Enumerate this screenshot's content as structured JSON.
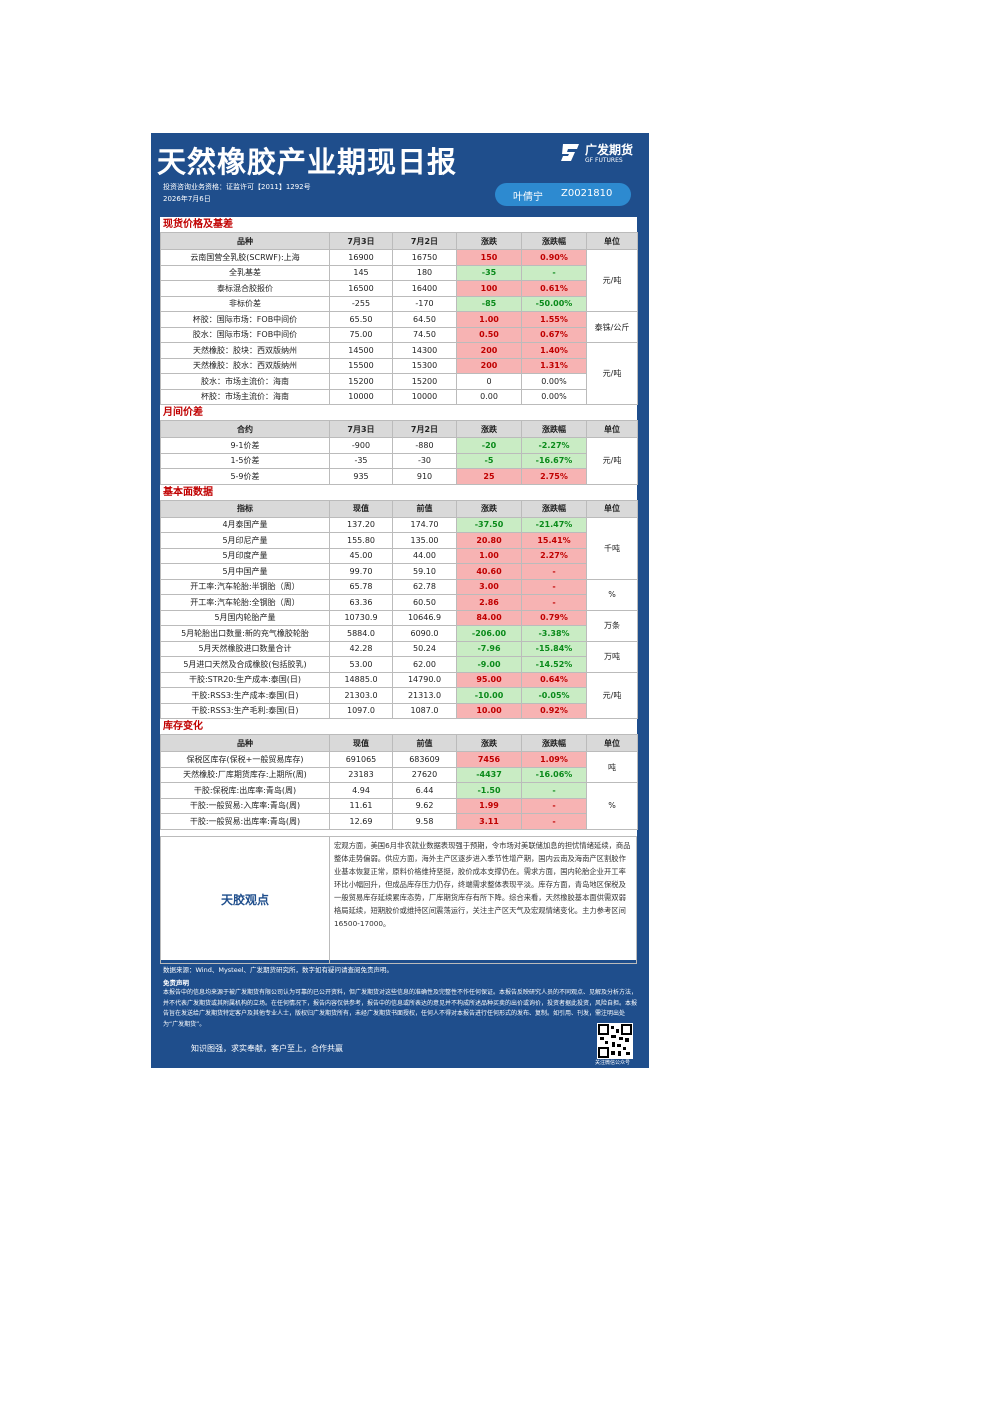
{
  "header": {
    "title": "天然橡胶产业期现日报",
    "logo_cn": "广发期货",
    "logo_en": "GF FUTURES",
    "license": "投资咨询业务资格：证监许可【2011】1292号",
    "date": "2026年7月6日",
    "analyst": "叶倩宁",
    "analyst_id": "Z0021810"
  },
  "sections": [
    {
      "title": "现货价格及基差",
      "header": [
        "品种",
        "7月3日",
        "7月2日",
        "涨跌",
        "涨跌幅",
        "单位"
      ],
      "rows": [
        [
          "云南国营全乳胶(SCRWF):上海",
          "16900",
          "16750",
          "150",
          "0.90%"
        ],
        [
          "全乳基差",
          "145",
          "180",
          "-35",
          "-"
        ],
        [
          "泰标混合胶报价",
          "16500",
          "16400",
          "100",
          "0.61%"
        ],
        [
          "非标价差",
          "-255",
          "-170",
          "-85",
          "-50.00%"
        ],
        [
          "杯胶：国际市场：FOB中间价",
          "65.50",
          "64.50",
          "1.00",
          "1.55%"
        ],
        [
          "胶水：国际市场：FOB中间价",
          "75.00",
          "74.50",
          "0.50",
          "0.67%"
        ],
        [
          "天然橡胶：胶块：西双版纳州",
          "14500",
          "14300",
          "200",
          "1.40%"
        ],
        [
          "天然橡胶：胶水：西双版纳州",
          "15500",
          "15300",
          "200",
          "1.31%"
        ],
        [
          "胶水：市场主流价：海南",
          "15200",
          "15200",
          "0",
          "0.00%"
        ],
        [
          "杯胶：市场主流价：海南",
          "10000",
          "10000",
          "0.00",
          "0.00%"
        ]
      ],
      "units": [
        "元/吨",
        null,
        null,
        null,
        "泰铢/公斤",
        null,
        "元/吨",
        null,
        null,
        null
      ]
    },
    {
      "title": "月间价差",
      "header": [
        "合约",
        "7月3日",
        "7月2日",
        "涨跌",
        "涨跌幅",
        "单位"
      ],
      "rows": [
        [
          "9-1价差",
          "-900",
          "-880",
          "-20",
          "-2.27%"
        ],
        [
          "1-5价差",
          "-35",
          "-30",
          "-5",
          "-16.67%"
        ],
        [
          "5-9价差",
          "935",
          "910",
          "25",
          "2.75%"
        ]
      ],
      "units": [
        "元/吨",
        null,
        null
      ]
    },
    {
      "title": "基本面数据",
      "header": [
        "指标",
        "现值",
        "前值",
        "涨跌",
        "涨跌幅",
        "单位"
      ],
      "rows": [
        [
          "4月泰国产量",
          "137.20",
          "174.70",
          "-37.50",
          "-21.47%"
        ],
        [
          "5月印尼产量",
          "155.80",
          "135.00",
          "20.80",
          "15.41%"
        ],
        [
          "5月印度产量",
          "45.00",
          "44.00",
          "1.00",
          "2.27%"
        ],
        [
          "5月中国产量",
          "99.70",
          "59.10",
          "40.60",
          "-"
        ],
        [
          "开工率:汽车轮胎:半钢胎（周）",
          "65.78",
          "62.78",
          "3.00",
          "-"
        ],
        [
          "开工率:汽车轮胎:全钢胎（周）",
          "63.36",
          "60.50",
          "2.86",
          "-"
        ],
        [
          "5月国内轮胎产量",
          "10730.9",
          "10646.9",
          "84.00",
          "0.79%"
        ],
        [
          "5月轮胎出口数量:新的充气橡胶轮胎",
          "5884.0",
          "6090.0",
          "-206.00",
          "-3.38%"
        ],
        [
          "5月天然橡胶进口数量合计",
          "42.28",
          "50.24",
          "-7.96",
          "-15.84%"
        ],
        [
          "5月进口天然及合成橡胶(包括胶乳)",
          "53.00",
          "62.00",
          "-9.00",
          "-14.52%"
        ],
        [
          "干胶:STR20:生产成本:泰国(日)",
          "14885.0",
          "14790.0",
          "95.00",
          "0.64%"
        ],
        [
          "干胶:RSS3:生产成本:泰国(日)",
          "21303.0",
          "21313.0",
          "-10.00",
          "-0.05%"
        ],
        [
          "干胶:RSS3:生产毛利:泰国(日)",
          "1097.0",
          "1087.0",
          "10.00",
          "0.92%"
        ]
      ],
      "units": [
        "千吨",
        null,
        null,
        null,
        "%",
        null,
        "万条",
        null,
        "万吨",
        null,
        "元/吨",
        null,
        null
      ]
    },
    {
      "title": "库存变化",
      "header": [
        "品种",
        "现值",
        "前值",
        "涨跌",
        "涨跌幅",
        "单位"
      ],
      "rows": [
        [
          "保税区库存(保税+一般贸易库存)",
          "691065",
          "683609",
          "7456",
          "1.09%"
        ],
        [
          "天然橡胶:厂库期货库存:上期所(周)",
          "23183",
          "27620",
          "-4437",
          "-16.06%"
        ],
        [
          "干胶:保税库:出库率:青岛(周)",
          "4.94",
          "6.44",
          "-1.50",
          "-"
        ],
        [
          "干胶:一般贸易:入库率:青岛(周)",
          "11.61",
          "9.62",
          "1.99",
          "-"
        ],
        [
          "干胶:一般贸易:出库率:青岛(周)",
          "12.69",
          "9.58",
          "3.11",
          "-"
        ]
      ],
      "units": [
        "吨",
        null,
        "%",
        null,
        null
      ]
    }
  ],
  "view": {
    "label": "天胶观点",
    "text": "宏观方面，美国6月非农就业数据表现强于预期，令市场对美联储加息的担忧情绪延续，商品整体走势偏弱。供应方面，海外主产区逐步进入季节性增产期，国内云南及海南产区割胶作业基本恢复正常，原料价格维持坚挺，胶价成本支撑仍在。需求方面，国内轮胎企业开工率环比小幅回升，但成品库存压力仍存，终端需求整体表现平淡。库存方面，青岛地区保税及一般贸易库存延续累库态势，厂库期货库存有所下降。综合来看，天然橡胶基本面供需双弱格局延续，短期胶价或维持区间震荡运行，关注主产区天气及宏观情绪变化。主力参考区间16500-17000。"
  },
  "footer": {
    "source": "数据来源：Wind、Mysteel、广发期货研究所，数字如有疑问请查阅免责声明。",
    "disclaimer_title": "免责声明",
    "disclaimer": "本报告中的信息均来源于被广发期货有限公司认为可靠的已公开资料，但广发期货对这些信息的准确性及完整性不作任何保证。本报告反映研究人员的不同观点、见解及分析方法，并不代表广发期货或其附属机构的立场。在任何情况下，报告内容仅供参考，报告中的信息或所表达的意见并不构成所述品种买卖的出价或询价，投资者据此投资，风险自担。本报告旨在发送给广发期货特定客户及其他专业人士，版权归广发期货所有，未经广发期货书面授权，任何人不得对本报告进行任何形式的发布、复制。如引用、刊发，需注明出处为“广发期货”。",
    "slogan": "知识图强，求实奉献，客户至上，合作共赢",
    "qr_caption": "关注微信公众号"
  }
}
